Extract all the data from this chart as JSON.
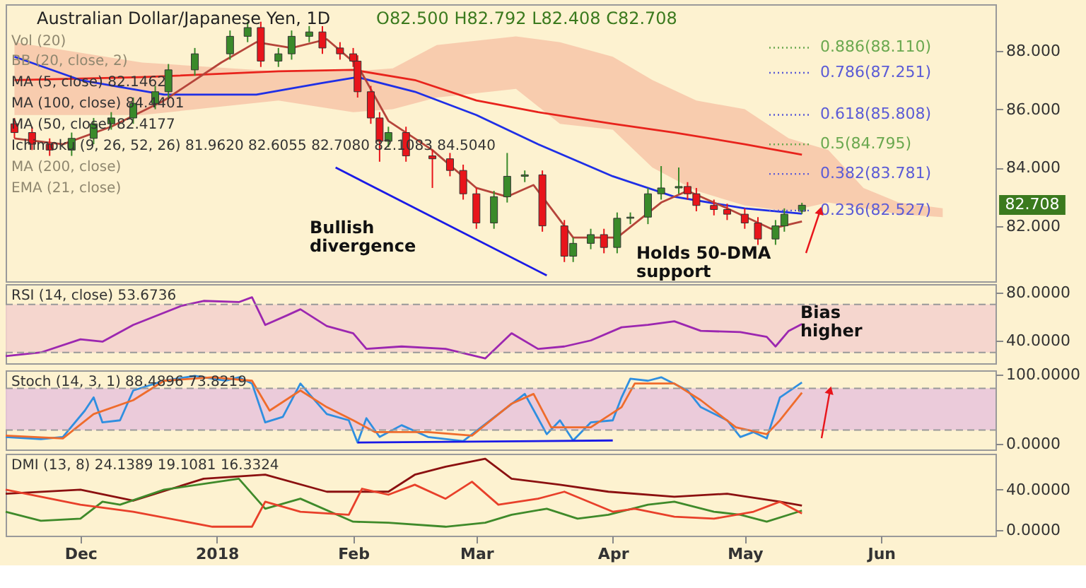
{
  "chart_data": [
    {
      "type": "candlestick",
      "title": "Australian Dollar/Japanese Yen, 1D",
      "subtitle": "O82.500 H82.792 L82.408 C82.708",
      "x": [
        "2017-11-16",
        "2017-11-20",
        "2017-11-24",
        "2017-11-29",
        "2017-12-04",
        "2017-12-08",
        "2017-12-13",
        "2017-12-18",
        "2017-12-21",
        "2017-12-27",
        "2018-01-04",
        "2018-01-08",
        "2018-01-11",
        "2018-01-15",
        "2018-01-18",
        "2018-01-22",
        "2018-01-25",
        "2018-01-29",
        "2018-02-01",
        "2018-02-02",
        "2018-02-05",
        "2018-02-07",
        "2018-02-09",
        "2018-02-13",
        "2018-02-19",
        "2018-02-23",
        "2018-02-26",
        "2018-03-01",
        "2018-03-05",
        "2018-03-08",
        "2018-03-12",
        "2018-03-16",
        "2018-03-21",
        "2018-03-23",
        "2018-03-27",
        "2018-03-30",
        "2018-04-02",
        "2018-04-05",
        "2018-04-09",
        "2018-04-12",
        "2018-04-16",
        "2018-04-18",
        "2018-04-20",
        "2018-04-24",
        "2018-04-27",
        "2018-05-01",
        "2018-05-04",
        "2018-05-08",
        "2018-05-10",
        "2018-05-14"
      ],
      "ohlc": [
        [
          85.5,
          85.7,
          85.0,
          85.2
        ],
        [
          85.2,
          85.4,
          84.6,
          84.8
        ],
        [
          84.8,
          85.0,
          84.4,
          84.6
        ],
        [
          84.6,
          85.2,
          84.4,
          85.0
        ],
        [
          85.0,
          85.7,
          84.8,
          85.5
        ],
        [
          85.5,
          85.9,
          85.3,
          85.7
        ],
        [
          85.7,
          86.4,
          85.5,
          86.2
        ],
        [
          86.2,
          86.8,
          86.0,
          86.6
        ],
        [
          86.6,
          87.55,
          86.4,
          87.35
        ],
        [
          87.35,
          88.1,
          87.15,
          87.9
        ],
        [
          87.9,
          88.7,
          87.7,
          88.5
        ],
        [
          88.5,
          89.0,
          88.3,
          88.8
        ],
        [
          88.8,
          89.0,
          87.45,
          87.65
        ],
        [
          87.65,
          88.1,
          87.45,
          87.9
        ],
        [
          87.9,
          88.7,
          87.7,
          88.5
        ],
        [
          88.5,
          88.85,
          88.3,
          88.65
        ],
        [
          88.65,
          88.85,
          87.9,
          88.1
        ],
        [
          88.1,
          88.3,
          87.7,
          87.9
        ],
        [
          87.9,
          88.1,
          87.45,
          87.65
        ],
        [
          87.65,
          87.85,
          86.4,
          86.6
        ],
        [
          86.6,
          86.8,
          85.5,
          85.7
        ],
        [
          85.7,
          85.9,
          84.2,
          84.9
        ],
        [
          84.9,
          85.4,
          84.7,
          85.2
        ],
        [
          85.2,
          85.4,
          84.2,
          84.4
        ],
        [
          84.4,
          84.6,
          83.3,
          84.3
        ],
        [
          84.3,
          84.5,
          83.7,
          83.9
        ],
        [
          83.9,
          84.1,
          82.9,
          83.1
        ],
        [
          83.1,
          83.3,
          81.9,
          82.1
        ],
        [
          82.1,
          83.2,
          81.9,
          83.0
        ],
        [
          83.0,
          84.5,
          82.8,
          83.7
        ],
        [
          83.7,
          83.9,
          83.5,
          83.75
        ],
        [
          83.75,
          83.9,
          81.8,
          82.0
        ],
        [
          82.0,
          82.2,
          80.76,
          80.96
        ],
        [
          80.96,
          81.6,
          80.76,
          81.4
        ],
        [
          81.4,
          81.9,
          81.2,
          81.7
        ],
        [
          81.7,
          81.9,
          81.06,
          81.26
        ],
        [
          81.26,
          82.46,
          81.06,
          82.26
        ],
        [
          82.26,
          82.46,
          82.06,
          82.3
        ],
        [
          82.3,
          83.3,
          82.06,
          83.1
        ],
        [
          83.1,
          84.05,
          82.9,
          83.3
        ],
        [
          83.3,
          84.0,
          83.1,
          83.35
        ],
        [
          83.35,
          83.5,
          82.9,
          83.1
        ],
        [
          83.1,
          83.3,
          82.5,
          82.7
        ],
        [
          82.7,
          82.9,
          82.36,
          82.56
        ],
        [
          82.56,
          82.76,
          82.2,
          82.4
        ],
        [
          82.4,
          82.6,
          81.9,
          82.1
        ],
        [
          82.1,
          82.3,
          81.35,
          81.55
        ],
        [
          81.55,
          82.2,
          81.35,
          82.0
        ],
        [
          82.0,
          82.6,
          81.8,
          82.4
        ],
        [
          82.5,
          82.792,
          82.408,
          82.708
        ]
      ],
      "series": [
        {
          "type": "area",
          "color": "#f6bfa3",
          "values": [
            null,
            null,
            null,
            null,
            null,
            null,
            null,
            null,
            null,
            null,
            null,
            null,
            null,
            null,
            null,
            null,
            null
          ],
          "x": [
            "2017-11-16",
            "2017-12-15",
            "2018-01-15",
            "2018-02-01",
            "2018-02-10",
            "2018-02-20",
            "2018-03-10",
            "2018-03-20",
            "2018-04-01",
            "2018-04-10",
            "2018-04-20",
            "2018-05-01",
            "2018-05-11",
            "2018-05-20",
            "2018-05-28",
            "2018-06-05",
            "2018-06-15"
          ],
          "lower": [
            85.8,
            85.8,
            86.3,
            85.9,
            86.0,
            86.4,
            86.7,
            85.5,
            85.3,
            84.0,
            83.2,
            82.7,
            82.5,
            82.8,
            82.6,
            82.4,
            82.3
          ],
          "upper": [
            88.3,
            87.6,
            87.3,
            87.3,
            87.4,
            88.2,
            88.5,
            88.3,
            87.8,
            87.0,
            86.3,
            86.0,
            85.0,
            84.6,
            83.3,
            82.8,
            82.6
          ]
        },
        {
          "type": "line",
          "color": "#e8231c",
          "x": [
            "2017-11-16",
            "2017-12-15",
            "2018-01-15",
            "2018-02-01",
            "2018-02-15",
            "2018-03-01",
            "2018-03-15",
            "2018-04-01",
            "2018-04-15",
            "2018-05-01",
            "2018-05-14"
          ],
          "values": [
            87.0,
            87.1,
            87.3,
            87.35,
            87.0,
            86.3,
            85.9,
            85.5,
            85.2,
            84.8,
            84.44
          ]
        },
        {
          "type": "line",
          "color": "#1f2fe6",
          "x": [
            "2017-11-16",
            "2017-12-01",
            "2017-12-20",
            "2018-01-10",
            "2018-01-25",
            "2018-02-02",
            "2018-02-15",
            "2018-03-01",
            "2018-03-15",
            "2018-04-01",
            "2018-04-15",
            "2018-05-01",
            "2018-05-14"
          ],
          "values": [
            87.8,
            87.0,
            86.5,
            86.5,
            86.9,
            87.1,
            86.6,
            85.8,
            84.8,
            83.7,
            83.0,
            82.6,
            82.42
          ]
        },
        {
          "type": "line",
          "color": "#b5443a",
          "x": [
            "2017-11-16",
            "2017-11-27",
            "2017-12-08",
            "2017-12-20",
            "2018-01-02",
            "2018-01-10",
            "2018-01-18",
            "2018-01-26",
            "2018-02-02",
            "2018-02-09",
            "2018-02-19",
            "2018-03-01",
            "2018-03-08",
            "2018-03-14",
            "2018-03-23",
            "2018-04-02",
            "2018-04-12",
            "2018-04-18",
            "2018-04-27",
            "2018-05-07",
            "2018-05-14"
          ],
          "values": [
            85.0,
            84.8,
            85.4,
            86.3,
            87.6,
            88.3,
            88.1,
            88.4,
            87.5,
            85.6,
            84.6,
            83.3,
            83.0,
            83.4,
            81.6,
            81.6,
            82.8,
            83.2,
            82.6,
            81.9,
            82.15
          ]
        },
        {
          "type": "line",
          "color": "#1a1ae6",
          "x": [
            "2018-01-28",
            "2018-03-17"
          ],
          "values": [
            84.0,
            80.3
          ]
        }
      ],
      "xlim": [
        "2017-11-14",
        "2018-06-27"
      ],
      "ylim": [
        80.1,
        89.6
      ],
      "yticks": [
        {
          "value": 82,
          "label": "82.000"
        },
        {
          "value": 84,
          "label": "84.000"
        },
        {
          "value": 86,
          "label": "86.000"
        },
        {
          "value": 88,
          "label": "88.000"
        }
      ],
      "ref_lines": [
        {
          "axis": "y",
          "value": 88.11,
          "label": "0.886(88.110)",
          "color": "#6aa84f",
          "line_style": "dotted"
        },
        {
          "axis": "y",
          "value": 87.251,
          "label": "0.786(87.251)",
          "color": "#5b5bd6",
          "line_style": "dotted"
        },
        {
          "axis": "y",
          "value": 85.808,
          "label": "0.618(85.808)",
          "color": "#5b5bd6",
          "line_style": "dotted"
        },
        {
          "axis": "y",
          "value": 84.795,
          "label": "0.5(84.795)",
          "color": "#6aa84f",
          "line_style": "dotted"
        },
        {
          "axis": "y",
          "value": 83.781,
          "label": "0.382(83.781)",
          "color": "#5b5bd6",
          "line_style": "dotted"
        },
        {
          "axis": "y",
          "value": 82.527,
          "label": "0.236(82.527)",
          "color": "#5b5bd6",
          "line_style": "dotted"
        }
      ],
      "annotations": [
        "Vol (20)",
        "BB (20, close, 2)",
        "MA (5, close)  82.1462",
        "MA (100, close)  84.4401",
        "MA (50, close)  82.4177",
        "Ichimoku (9, 26, 52, 26)  81.9620  82.6055  82.7080  82.1083  84.5040",
        "MA (200, close)",
        "EMA (21, close)",
        "Bullish divergence",
        "Holds 50-DMA support",
        "82.708"
      ],
      "tick_labels": "y"
    },
    {
      "type": "line",
      "series": [
        {
          "color": "#9c27b0",
          "x": [
            "2017-11-14",
            "2017-11-22",
            "2017-12-01",
            "2017-12-06",
            "2017-12-13",
            "2017-12-24",
            "2017-12-29",
            "2018-01-06",
            "2018-01-09",
            "2018-01-12",
            "2018-01-17",
            "2018-01-20",
            "2018-01-26",
            "2018-02-01",
            "2018-02-04",
            "2018-02-12",
            "2018-02-22",
            "2018-03-03",
            "2018-03-09",
            "2018-03-15",
            "2018-03-21",
            "2018-03-27",
            "2018-04-03",
            "2018-04-09",
            "2018-04-15",
            "2018-04-21",
            "2018-04-30",
            "2018-05-06",
            "2018-05-08",
            "2018-05-11",
            "2018-05-14"
          ],
          "values": [
            27,
            30,
            41,
            39,
            53,
            69,
            73,
            72,
            76,
            53,
            61,
            66,
            52,
            46,
            33,
            35,
            33,
            25,
            46,
            33,
            35,
            40,
            51,
            53,
            56,
            48,
            47,
            43,
            35,
            48,
            53.67
          ]
        }
      ],
      "xlim": [
        "2017-11-14",
        "2018-06-27"
      ],
      "ylim": [
        21,
        87
      ],
      "yticks": [
        {
          "value": 40,
          "label": "40.0000"
        },
        {
          "value": 80,
          "label": "80.0000"
        }
      ],
      "bands": [
        {
          "axis": "y",
          "from": 30,
          "to": 70,
          "color": "#f4d3cd"
        }
      ],
      "ref_lines": [
        {
          "axis": "y",
          "value": 30,
          "color": "#999999",
          "line_style": "dashed"
        },
        {
          "axis": "y",
          "value": 70,
          "color": "#999999",
          "line_style": "dashed"
        }
      ],
      "annotations": [
        "RSI (14, close)  53.6736",
        "Bias higher"
      ],
      "tick_labels": "y"
    },
    {
      "type": "line",
      "series": [
        {
          "color": "#2f8fe0",
          "x": [
            "2017-11-14",
            "2017-11-22",
            "2017-11-27",
            "2017-12-02",
            "2017-12-04",
            "2017-12-06",
            "2017-12-10",
            "2017-12-13",
            "2017-12-20",
            "2017-12-27",
            "2018-01-03",
            "2018-01-06",
            "2018-01-09",
            "2018-01-12",
            "2018-01-16",
            "2018-01-20",
            "2018-01-22",
            "2018-01-26",
            "2018-01-31",
            "2018-02-02",
            "2018-02-04",
            "2018-02-07",
            "2018-02-12",
            "2018-02-18",
            "2018-02-26",
            "2018-03-06",
            "2018-03-12",
            "2018-03-17",
            "2018-03-20",
            "2018-03-23",
            "2018-03-27",
            "2018-04-01",
            "2018-04-03",
            "2018-04-05",
            "2018-04-09",
            "2018-04-12",
            "2018-04-18",
            "2018-04-21",
            "2018-04-27",
            "2018-04-30",
            "2018-05-03",
            "2018-05-06",
            "2018-05-09",
            "2018-05-14"
          ],
          "values": [
            10,
            7,
            10,
            48,
            67,
            31,
            34,
            77,
            91,
            98,
            91,
            96,
            87,
            31,
            39,
            87,
            72,
            43,
            34,
            2,
            37,
            10,
            27,
            10,
            4,
            43,
            72,
            14,
            34,
            5,
            31,
            34,
            67,
            94,
            91,
            96,
            77,
            53,
            34,
            10,
            17,
            8,
            67,
            88.49
          ]
        },
        {
          "color": "#ef6c2c",
          "x": [
            "2017-11-14",
            "2017-11-27",
            "2017-12-04",
            "2017-12-13",
            "2017-12-20",
            "2017-12-31",
            "2018-01-09",
            "2018-01-13",
            "2018-01-20",
            "2018-01-26",
            "2018-02-01",
            "2018-02-06",
            "2018-02-18",
            "2018-02-28",
            "2018-03-09",
            "2018-03-14",
            "2018-03-18",
            "2018-03-27",
            "2018-04-03",
            "2018-04-06",
            "2018-04-15",
            "2018-04-21",
            "2018-04-29",
            "2018-05-06",
            "2018-05-09",
            "2018-05-14"
          ],
          "values": [
            12,
            8,
            43,
            63,
            91,
            96,
            91,
            48,
            77,
            53,
            34,
            17,
            17,
            12,
            58,
            72,
            24,
            24,
            53,
            87,
            87,
            63,
            24,
            14,
            34,
            73.82
          ]
        },
        {
          "color": "#1a1ae6",
          "x": [
            "2018-02-02",
            "2018-04-01"
          ],
          "values": [
            2,
            5
          ]
        }
      ],
      "xlim": [
        "2017-11-14",
        "2018-06-27"
      ],
      "ylim": [
        -8,
        106
      ],
      "yticks": [
        {
          "value": 0,
          "label": "0.0000"
        },
        {
          "value": 100,
          "label": "100.0000"
        }
      ],
      "bands": [
        {
          "axis": "y",
          "from": 20,
          "to": 80,
          "color": "#e9c6da"
        }
      ],
      "ref_lines": [
        {
          "axis": "y",
          "value": 20,
          "color": "#999999",
          "line_style": "dashed"
        },
        {
          "axis": "y",
          "value": 80,
          "color": "#999999",
          "line_style": "dashed"
        }
      ],
      "annotations": [
        "Stoch (14, 3, 1)  88.4896  73.8219"
      ],
      "tick_labels": "y"
    },
    {
      "type": "line",
      "series": [
        {
          "color": "#8b1010",
          "x": [
            "2017-11-14",
            "2017-12-01",
            "2017-12-13",
            "2017-12-29",
            "2018-01-12",
            "2018-01-26",
            "2018-02-09",
            "2018-02-15",
            "2018-02-22",
            "2018-03-03",
            "2018-03-09",
            "2018-03-20",
            "2018-03-31",
            "2018-04-15",
            "2018-04-27",
            "2018-05-09",
            "2018-05-14"
          ],
          "values": [
            36,
            40,
            29,
            51,
            55,
            38,
            38,
            55,
            63,
            71,
            51,
            45,
            38,
            33,
            36,
            28,
            24.14
          ]
        },
        {
          "color": "#3f8a2a",
          "x": [
            "2017-11-14",
            "2017-11-22",
            "2017-12-01",
            "2017-12-06",
            "2017-12-10",
            "2017-12-20",
            "2018-01-06",
            "2018-01-12",
            "2018-01-20",
            "2018-02-01",
            "2018-02-09",
            "2018-02-22",
            "2018-03-03",
            "2018-03-09",
            "2018-03-17",
            "2018-03-24",
            "2018-03-31",
            "2018-04-09",
            "2018-04-15",
            "2018-04-24",
            "2018-04-30",
            "2018-05-06",
            "2018-05-14"
          ],
          "values": [
            18,
            9,
            11,
            28,
            25,
            40,
            51,
            21,
            31,
            8,
            7,
            3,
            7,
            15,
            21,
            11,
            15,
            25,
            28,
            18,
            15,
            8,
            19.11
          ]
        },
        {
          "color": "#e8402a",
          "x": [
            "2017-11-14",
            "2017-12-01",
            "2017-12-13",
            "2017-12-31",
            "2018-01-09",
            "2018-01-12",
            "2018-01-20",
            "2018-01-31",
            "2018-02-03",
            "2018-02-09",
            "2018-02-15",
            "2018-02-22",
            "2018-02-28",
            "2018-03-06",
            "2018-03-15",
            "2018-03-21",
            "2018-04-01",
            "2018-04-06",
            "2018-04-15",
            "2018-04-24",
            "2018-05-03",
            "2018-05-09",
            "2018-05-14"
          ],
          "values": [
            40,
            25,
            18,
            3,
            3,
            28,
            18,
            15,
            41,
            35,
            45,
            31,
            48,
            25,
            31,
            38,
            18,
            21,
            13,
            11,
            18,
            28,
            16.33
          ]
        }
      ],
      "xlim": [
        "2017-11-14",
        "2018-06-27"
      ],
      "xticks": [
        {
          "value": "2017-12-01",
          "label": "Dec"
        },
        {
          "value": "2018-01-01",
          "label": "2018"
        },
        {
          "value": "2018-02-01",
          "label": "Feb"
        },
        {
          "value": "2018-03-01",
          "label": "Mar"
        },
        {
          "value": "2018-04-01",
          "label": "Apr"
        },
        {
          "value": "2018-05-01",
          "label": "May"
        },
        {
          "value": "2018-06-01",
          "label": "Jun"
        }
      ],
      "ylim": [
        -6,
        76
      ],
      "yticks": [
        {
          "value": 0,
          "label": "0.0000"
        },
        {
          "value": 40,
          "label": "40.0000"
        }
      ],
      "annotations": [
        "DMI (13, 8)  24.1389  19.1081  16.3324"
      ]
    }
  ]
}
